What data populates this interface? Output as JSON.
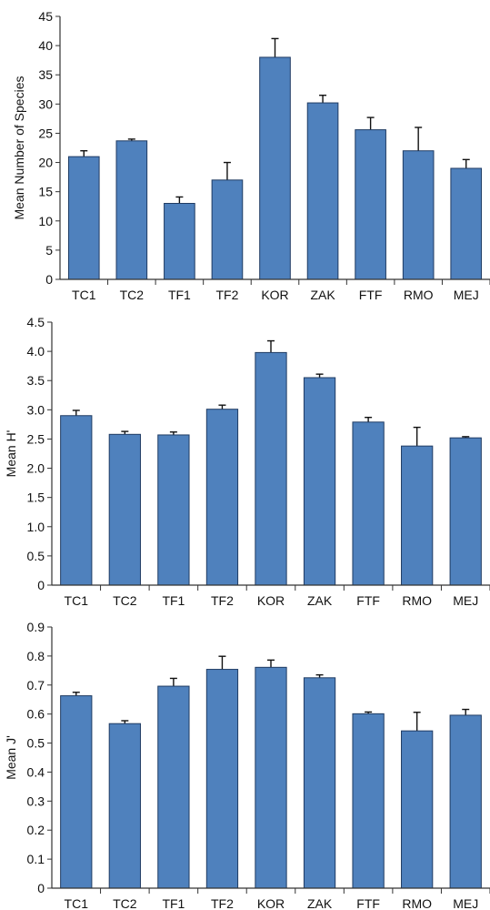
{
  "colors": {
    "bar": "#4f81bd",
    "bar_stroke": "#1f3b63",
    "axis": "#333333"
  },
  "chart_data": [
    {
      "type": "bar",
      "ylabel": "Mean Number of Species",
      "categories": [
        "TC1",
        "TC2",
        "TF1",
        "TF2",
        "KOR",
        "ZAK",
        "FTF",
        "RMO",
        "MEJ"
      ],
      "values": [
        21,
        23.7,
        13,
        17,
        38,
        30.2,
        25.6,
        22,
        19
      ],
      "errors": [
        1,
        0.3,
        1.1,
        3,
        3.2,
        1.3,
        2.1,
        4,
        1.5
      ],
      "ylim": [
        0,
        45
      ],
      "yticks": [
        "0",
        "5",
        "10",
        "15",
        "20",
        "25",
        "30",
        "35",
        "40",
        "45"
      ],
      "grid": false
    },
    {
      "type": "bar",
      "ylabel": "Mean H'",
      "categories": [
        "TC1",
        "TC2",
        "TF1",
        "TF2",
        "KOR",
        "ZAK",
        "FTF",
        "RMO",
        "MEJ"
      ],
      "values": [
        2.9,
        2.58,
        2.57,
        3.01,
        3.98,
        3.55,
        2.79,
        2.38,
        2.52
      ],
      "errors": [
        0.09,
        0.05,
        0.05,
        0.07,
        0.2,
        0.06,
        0.08,
        0.32,
        0.02
      ],
      "ylim": [
        0,
        4.5
      ],
      "yticks": [
        "0",
        "0.5",
        "1.0",
        "1.5",
        "2.0",
        "2.5",
        "3.0",
        "3.5",
        "4.0",
        "4.5"
      ],
      "grid": false
    },
    {
      "type": "bar",
      "ylabel": "Mean J'",
      "categories": [
        "TC1",
        "TC2",
        "TF1",
        "TF2",
        "KOR",
        "ZAK",
        "FTF",
        "RMO",
        "MEJ"
      ],
      "values": [
        0.663,
        0.567,
        0.696,
        0.754,
        0.761,
        0.725,
        0.601,
        0.542,
        0.596
      ],
      "errors": [
        0.012,
        0.01,
        0.027,
        0.045,
        0.025,
        0.01,
        0.006,
        0.064,
        0.02
      ],
      "ylim": [
        0,
        0.9
      ],
      "yticks": [
        "0",
        "0.1",
        "0.2",
        "0.3",
        "0.4",
        "0.5",
        "0.6",
        "0.7",
        "0.8",
        "0.9"
      ],
      "grid": false
    }
  ]
}
